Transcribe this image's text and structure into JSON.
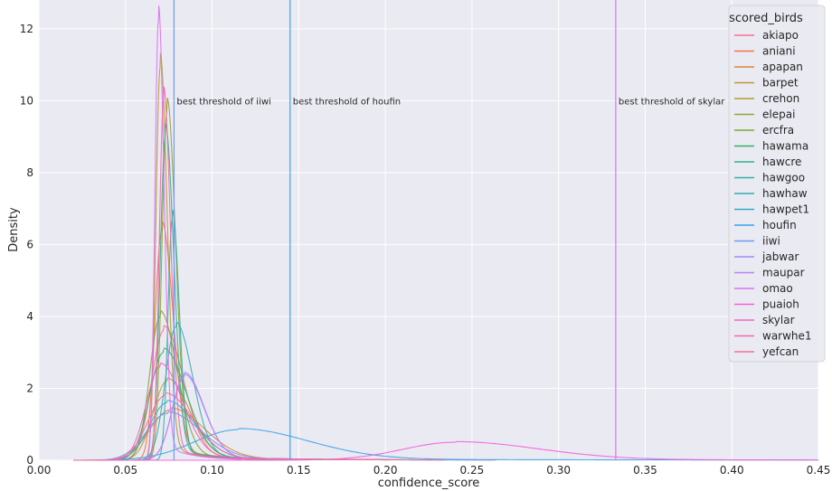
{
  "chart_data": {
    "type": "line",
    "xlabel": "confidence_score",
    "ylabel": "Density",
    "xlim": [
      0.0,
      0.45
    ],
    "ylim": [
      0,
      12.8
    ],
    "xticks": [
      "0.00",
      "0.05",
      "0.10",
      "0.15",
      "0.20",
      "0.25",
      "0.30",
      "0.35",
      "0.40",
      "0.45"
    ],
    "yticks": [
      "0",
      "2",
      "4",
      "6",
      "8",
      "10",
      "12"
    ],
    "grid": true,
    "background": "#eaeaf2",
    "legend": {
      "title": "scored_birds",
      "placement": "top-right"
    },
    "series": [
      {
        "name": "akiapo",
        "color": "#f77189",
        "peak_x": 0.072,
        "peak_y": 3.6,
        "width": 0.007
      },
      {
        "name": "aniani",
        "color": "#f0764d",
        "peak_x": 0.071,
        "peak_y": 6.4,
        "width": 0.004
      },
      {
        "name": "apapan",
        "color": "#db8831",
        "peak_x": 0.076,
        "peak_y": 1.4,
        "width": 0.012
      },
      {
        "name": "barpet",
        "color": "#c39532",
        "peak_x": 0.074,
        "peak_y": 2.2,
        "width": 0.008
      },
      {
        "name": "crehon",
        "color": "#ae9d31",
        "peak_x": 0.07,
        "peak_y": 10.9,
        "width": 0.0025
      },
      {
        "name": "elepai",
        "color": "#97a431",
        "peak_x": 0.074,
        "peak_y": 9.7,
        "width": 0.003
      },
      {
        "name": "ercfra",
        "color": "#77ab31",
        "peak_x": 0.07,
        "peak_y": 4.0,
        "width": 0.006
      },
      {
        "name": "hawama",
        "color": "#32b165",
        "peak_x": 0.072,
        "peak_y": 3.0,
        "width": 0.008
      },
      {
        "name": "hawcre",
        "color": "#34ae91",
        "peak_x": 0.073,
        "peak_y": 9.0,
        "width": 0.003
      },
      {
        "name": "hawgoo",
        "color": "#36ada4",
        "peak_x": 0.077,
        "peak_y": 6.7,
        "width": 0.0025
      },
      {
        "name": "hawhaw",
        "color": "#37abb4",
        "peak_x": 0.079,
        "peak_y": 3.7,
        "width": 0.006
      },
      {
        "name": "hawpet1",
        "color": "#39a7c6",
        "peak_x": 0.074,
        "peak_y": 1.6,
        "width": 0.01
      },
      {
        "name": "houfin",
        "color": "#3ba3ec",
        "peak_x": 0.115,
        "peak_y": 0.85,
        "width": 0.025
      },
      {
        "name": "iiwi",
        "color": "#6e9bf4",
        "peak_x": 0.074,
        "peak_y": 1.3,
        "width": 0.012
      },
      {
        "name": "jabwar",
        "color": "#998ef4",
        "peak_x": 0.084,
        "peak_y": 2.35,
        "width": 0.007
      },
      {
        "name": "maupar",
        "color": "#bb83f4",
        "peak_x": 0.084,
        "peak_y": 2.3,
        "width": 0.007
      },
      {
        "name": "omao",
        "color": "#dd71f4",
        "peak_x": 0.069,
        "peak_y": 12.2,
        "width": 0.002
      },
      {
        "name": "puaioh",
        "color": "#f45fd8",
        "peak_x": 0.24,
        "peak_y": 0.5,
        "width": 0.03
      },
      {
        "name": "skylar",
        "color": "#f562c2",
        "peak_x": 0.07,
        "peak_y": 2.6,
        "width": 0.008
      },
      {
        "name": "warwhe1",
        "color": "#f568ab",
        "peak_x": 0.072,
        "peak_y": 10.0,
        "width": 0.0025
      },
      {
        "name": "yefcan",
        "color": "#f66e97",
        "peak_x": 0.073,
        "peak_y": 1.8,
        "width": 0.01
      }
    ],
    "vlines": [
      {
        "x": 0.078,
        "color": "#6e9bf4",
        "label": "best threshold of iiwi"
      },
      {
        "x": 0.145,
        "color": "#3ba3ec",
        "label": "best threshold of houfin"
      },
      {
        "x": 0.333,
        "color": "#dd71f4",
        "label": "best threshold of skylar"
      }
    ],
    "annotation_y": 10.0
  }
}
